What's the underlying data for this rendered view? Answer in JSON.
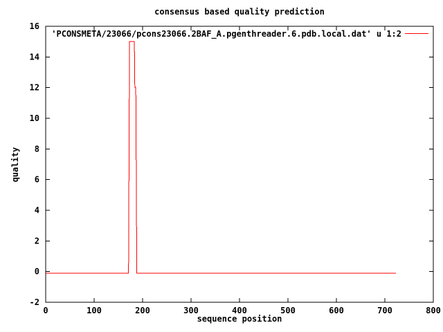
{
  "colors": {
    "background": "#ffffff",
    "axis": "#000000",
    "series_red": "#ff0000"
  },
  "chart_data": {
    "type": "line",
    "title": "consensus based quality prediction",
    "xlabel": "sequence position",
    "ylabel": "quality",
    "xlim": [
      0,
      800
    ],
    "ylim": [
      -2,
      16
    ],
    "xticks": [
      0,
      100,
      200,
      300,
      400,
      500,
      600,
      700,
      800
    ],
    "yticks": [
      -2,
      0,
      2,
      4,
      6,
      8,
      10,
      12,
      14,
      16
    ],
    "grid": false,
    "legend_position": "top-right-inside",
    "series": [
      {
        "name": "'PCONSMETA/23066/pcons23066.2BAF_A.pgenthreader.6.pdb.local.dat' u 1:2",
        "color": "#ff0000",
        "points": [
          [
            0,
            -0.1
          ],
          [
            171,
            -0.1
          ],
          [
            172,
            7.4
          ],
          [
            173,
            15
          ],
          [
            183,
            15
          ],
          [
            184,
            12
          ],
          [
            186,
            12
          ],
          [
            187,
            6
          ],
          [
            188,
            -0.1
          ],
          [
            723,
            -0.1
          ]
        ]
      }
    ]
  }
}
